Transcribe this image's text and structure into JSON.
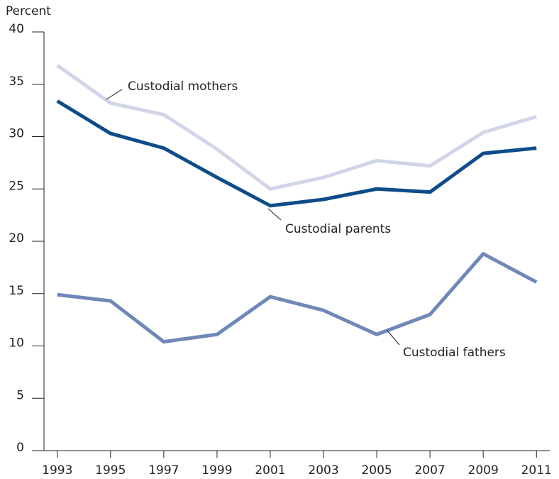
{
  "chart_data": {
    "type": "line",
    "y_label": "Percent",
    "x": [
      1993,
      1995,
      1997,
      1999,
      2001,
      2003,
      2005,
      2007,
      2009,
      2011
    ],
    "xlim": [
      1992.5,
      2011.5
    ],
    "xticks": [
      1993,
      1995,
      1997,
      1999,
      2001,
      2003,
      2005,
      2007,
      2009,
      2011
    ],
    "ylim": [
      0,
      40
    ],
    "yticks": [
      0,
      5,
      10,
      15,
      20,
      25,
      30,
      35,
      40
    ],
    "series": [
      {
        "name": "Custodial mothers",
        "color": "#d0d5e8",
        "values": [
          36.8,
          33.2,
          32.1,
          28.8,
          25.0,
          26.1,
          27.7,
          27.2,
          30.4,
          31.9
        ]
      },
      {
        "name": "Custodial parents",
        "color": "#0e4c8a",
        "values": [
          33.4,
          30.3,
          28.9,
          26.1,
          23.4,
          24.0,
          25.0,
          24.7,
          28.4,
          28.9
        ]
      },
      {
        "name": "Custodial fathers",
        "color": "#6f88b8",
        "values": [
          14.9,
          14.3,
          10.4,
          11.1,
          14.7,
          13.4,
          11.1,
          13.0,
          18.8,
          16.1
        ]
      }
    ]
  }
}
